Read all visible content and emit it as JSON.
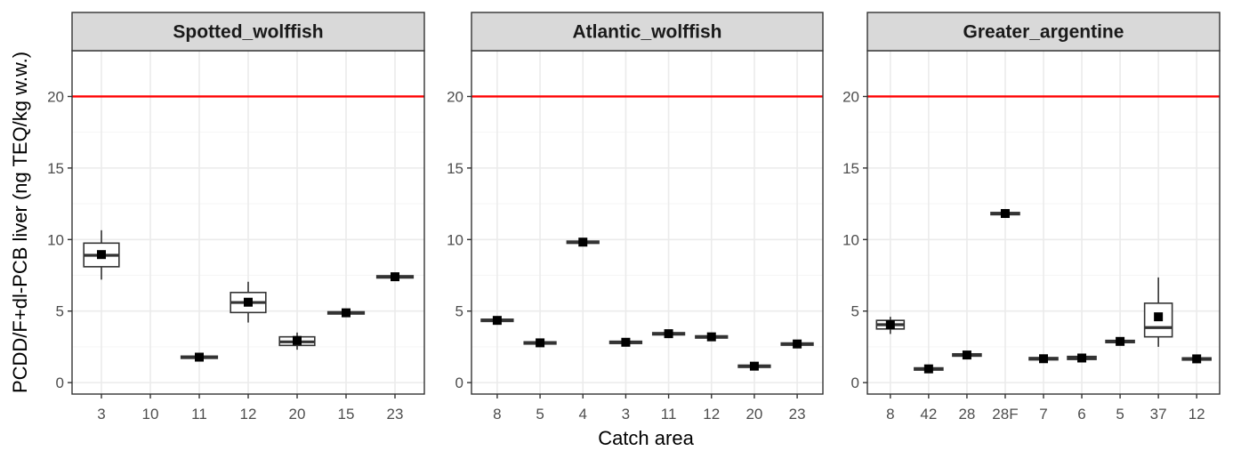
{
  "colors": {
    "panel_border": "#333333",
    "strip_fill": "#d9d9d9",
    "grid_major": "#ebebeb",
    "grid_minor": "#f5f5f5",
    "limit_line": "#ff0000",
    "box_stroke": "#333333",
    "mean_marker": "#000000"
  },
  "chart_data": {
    "type": "box",
    "ylabel": "PCDD/F+dl-PCB liver (ng TEQ/kg w.w.)",
    "xlabel": "Catch area",
    "ylim": [
      -0.8,
      23.2
    ],
    "yticks": [
      0,
      5,
      10,
      15,
      20
    ],
    "limit_line": 20,
    "grid": true,
    "panels": [
      {
        "title": "Spotted_wolffish",
        "categories": [
          "3",
          "10",
          "11",
          "12",
          "20",
          "15",
          "23"
        ],
        "boxes": [
          {
            "cat": "3",
            "min": 7.2,
            "q1": 8.1,
            "median": 8.9,
            "q3": 9.75,
            "max": 10.65,
            "mean": 8.95
          },
          {
            "cat": "11",
            "min": 1.75,
            "q1": 1.75,
            "median": 1.78,
            "q3": 1.82,
            "max": 1.82,
            "mean": 1.78
          },
          {
            "cat": "12",
            "min": 4.2,
            "q1": 4.9,
            "median": 5.6,
            "q3": 6.3,
            "max": 7.05,
            "mean": 5.62
          },
          {
            "cat": "20",
            "min": 2.3,
            "q1": 2.6,
            "median": 2.85,
            "q3": 3.2,
            "max": 3.5,
            "mean": 2.95
          },
          {
            "cat": "15",
            "min": 4.85,
            "q1": 4.85,
            "median": 4.88,
            "q3": 4.92,
            "max": 4.92,
            "mean": 4.88
          },
          {
            "cat": "23",
            "min": 7.38,
            "q1": 7.38,
            "median": 7.4,
            "q3": 7.44,
            "max": 7.44,
            "mean": 7.4
          }
        ]
      },
      {
        "title": "Atlantic_wolffish",
        "categories": [
          "8",
          "5",
          "4",
          "3",
          "11",
          "12",
          "20",
          "23"
        ],
        "boxes": [
          {
            "cat": "8",
            "min": 4.32,
            "q1": 4.32,
            "median": 4.35,
            "q3": 4.4,
            "max": 4.4,
            "mean": 4.35
          },
          {
            "cat": "5",
            "min": 2.74,
            "q1": 2.74,
            "median": 2.78,
            "q3": 2.82,
            "max": 2.82,
            "mean": 2.78
          },
          {
            "cat": "4",
            "min": 9.78,
            "q1": 9.78,
            "median": 9.82,
            "q3": 9.86,
            "max": 9.86,
            "mean": 9.82
          },
          {
            "cat": "3",
            "min": 2.78,
            "q1": 2.78,
            "median": 2.82,
            "q3": 2.86,
            "max": 2.86,
            "mean": 2.82
          },
          {
            "cat": "11",
            "min": 3.38,
            "q1": 3.38,
            "median": 3.42,
            "q3": 3.46,
            "max": 3.46,
            "mean": 3.42
          },
          {
            "cat": "12",
            "min": 3.16,
            "q1": 3.16,
            "median": 3.2,
            "q3": 3.24,
            "max": 3.24,
            "mean": 3.2
          },
          {
            "cat": "20",
            "min": 1.12,
            "q1": 1.12,
            "median": 1.15,
            "q3": 1.19,
            "max": 1.19,
            "mean": 1.15
          },
          {
            "cat": "23",
            "min": 2.66,
            "q1": 2.66,
            "median": 2.7,
            "q3": 2.74,
            "max": 2.74,
            "mean": 2.7
          }
        ]
      },
      {
        "title": "Greater_argentine",
        "categories": [
          "8",
          "42",
          "28",
          "28F",
          "7",
          "6",
          "5",
          "37",
          "12"
        ],
        "boxes": [
          {
            "cat": "8",
            "min": 3.4,
            "q1": 3.75,
            "median": 4.05,
            "q3": 4.35,
            "max": 4.6,
            "mean": 4.05
          },
          {
            "cat": "42",
            "min": 0.92,
            "q1": 0.92,
            "median": 0.96,
            "q3": 1.0,
            "max": 1.0,
            "mean": 0.96
          },
          {
            "cat": "28",
            "min": 1.88,
            "q1": 1.88,
            "median": 1.93,
            "q3": 1.98,
            "max": 1.98,
            "mean": 1.93
          },
          {
            "cat": "28F",
            "min": 11.78,
            "q1": 11.78,
            "median": 11.82,
            "q3": 11.86,
            "max": 11.86,
            "mean": 11.82
          },
          {
            "cat": "7",
            "min": 1.62,
            "q1": 1.62,
            "median": 1.67,
            "q3": 1.72,
            "max": 1.72,
            "mean": 1.67
          },
          {
            "cat": "6",
            "min": 1.65,
            "q1": 1.65,
            "median": 1.72,
            "q3": 1.8,
            "max": 1.8,
            "mean": 1.72
          },
          {
            "cat": "5",
            "min": 2.84,
            "q1": 2.84,
            "median": 2.88,
            "q3": 2.92,
            "max": 2.92,
            "mean": 2.88
          },
          {
            "cat": "37",
            "min": 2.5,
            "q1": 3.2,
            "median": 3.85,
            "q3": 5.55,
            "max": 7.35,
            "mean": 4.6
          },
          {
            "cat": "12",
            "min": 1.62,
            "q1": 1.62,
            "median": 1.66,
            "q3": 1.7,
            "max": 1.7,
            "mean": 1.66
          }
        ]
      }
    ]
  }
}
